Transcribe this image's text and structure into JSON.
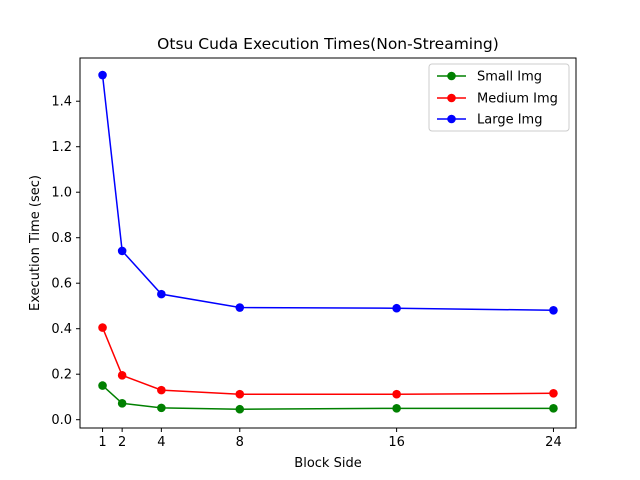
{
  "chart_data": {
    "type": "line",
    "title": "Otsu Cuda Execution Times(Non-Streaming)",
    "xlabel": "Block Side",
    "ylabel": "Execution Time (sec)",
    "x": [
      1,
      2,
      4,
      8,
      16,
      24
    ],
    "x_ticks": [
      1,
      2,
      4,
      8,
      16,
      24
    ],
    "x_tick_labels": [
      "1",
      "2",
      "4",
      "8",
      "16",
      "24"
    ],
    "y_ticks": [
      0.0,
      0.2,
      0.4,
      0.6,
      0.8,
      1.0,
      1.2,
      1.4
    ],
    "y_tick_labels": [
      "0.0",
      "0.2",
      "0.4",
      "0.6",
      "0.8",
      "1.0",
      "1.2",
      "1.4"
    ],
    "xlim": [
      -0.15,
      25.15
    ],
    "ylim": [
      -0.0365,
      1.59
    ],
    "grid": false,
    "legend_position": "top-right",
    "series": [
      {
        "name": "Small Img",
        "color": "#008000",
        "values": [
          0.15,
          0.072,
          0.052,
          0.046,
          0.05,
          0.05
        ]
      },
      {
        "name": "Medium Img",
        "color": "#ff0000",
        "values": [
          0.405,
          0.195,
          0.13,
          0.112,
          0.112,
          0.116
        ]
      },
      {
        "name": "Large Img",
        "color": "#0000ff",
        "values": [
          1.515,
          0.742,
          0.552,
          0.493,
          0.49,
          0.481
        ]
      }
    ]
  }
}
